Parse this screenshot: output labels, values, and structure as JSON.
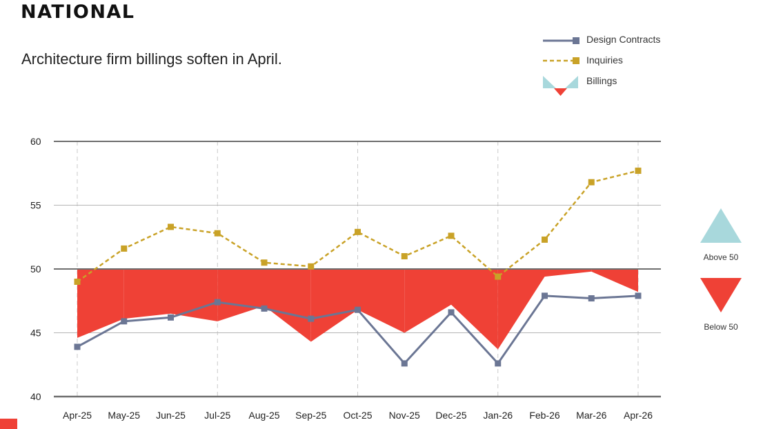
{
  "header": {
    "title": "NATIONAL",
    "subtitle": "Architecture firm billings soften in April."
  },
  "colors": {
    "design": "#6b7694",
    "inquiries": "#c9a227",
    "billings_below": "#ef4136",
    "billings_above": "#a8d8dc",
    "axis": "#6d6d6d",
    "grid": "#b5b5b5",
    "vgrid": "#c9c9c9"
  },
  "legend": {
    "items": [
      {
        "label": "Design Contracts",
        "icon": "line-square-marker-icon"
      },
      {
        "label": "Inquiries",
        "icon": "dashed-line-square-marker-icon"
      },
      {
        "label": "Billings",
        "icon": "billings-triangles-icon"
      }
    ]
  },
  "side_legend": {
    "above": "Above 50",
    "below": "Below 50"
  },
  "chart_data": {
    "type": "line",
    "categories": [
      "Apr-25",
      "May-25",
      "Jun-25",
      "Jul-25",
      "Aug-25",
      "Sep-25",
      "Oct-25",
      "Nov-25",
      "Dec-25",
      "Jan-26",
      "Feb-26",
      "Mar-26",
      "Apr-26"
    ],
    "ylim": [
      40,
      60
    ],
    "yticks": [
      40,
      45,
      50,
      55,
      60
    ],
    "baseline": 50,
    "grid": true,
    "legend_position": "top-right",
    "series": [
      {
        "name": "Design Contracts",
        "style": "solid",
        "values": [
          43.9,
          45.9,
          46.2,
          47.4,
          46.9,
          46.1,
          46.8,
          42.6,
          46.6,
          42.6,
          47.9,
          47.7,
          47.9
        ]
      },
      {
        "name": "Inquiries",
        "style": "dashed",
        "values": [
          49.0,
          51.6,
          53.3,
          52.8,
          50.5,
          50.2,
          52.9,
          51.0,
          52.6,
          49.4,
          52.3,
          56.8,
          57.7
        ]
      },
      {
        "name": "Billings",
        "style": "area-from-50",
        "values": [
          44.6,
          46.1,
          46.5,
          45.9,
          47.1,
          44.3,
          46.8,
          45.0,
          47.2,
          43.7,
          49.4,
          49.8,
          48.2
        ]
      }
    ]
  }
}
